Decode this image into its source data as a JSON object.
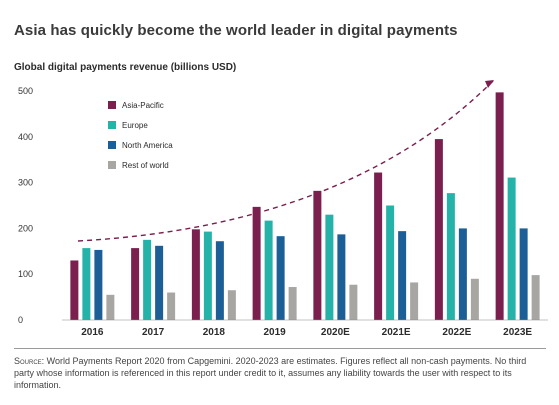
{
  "title": "Asia has quickly become the world leader in digital payments",
  "chart_data": {
    "type": "bar",
    "title": "Global digital payments revenue (billions USD)",
    "categories": [
      "2016",
      "2017",
      "2018",
      "2019",
      "2020E",
      "2021E",
      "2022E",
      "2023E"
    ],
    "series": [
      {
        "name": "Asia-Pacific",
        "color": "#7b1f4f",
        "values": [
          130,
          157,
          198,
          247,
          282,
          322,
          395,
          497
        ]
      },
      {
        "name": "Europe",
        "color": "#25b3a9",
        "values": [
          157,
          175,
          193,
          217,
          230,
          250,
          277,
          311
        ]
      },
      {
        "name": "North America",
        "color": "#1c5f96",
        "values": [
          153,
          162,
          172,
          183,
          187,
          194,
          200,
          200
        ]
      },
      {
        "name": "Rest of world",
        "color": "#a8a6a3",
        "values": [
          55,
          60,
          65,
          72,
          77,
          82,
          90,
          98
        ]
      }
    ],
    "yticks": [
      0,
      100,
      200,
      300,
      400,
      500
    ],
    "ylim": [
      0,
      500
    ],
    "legend": "top-left",
    "grid": false,
    "trend": "dashed curved arrow above bars"
  },
  "source": {
    "label": "Source:",
    "text": " World Payments Report 2020 from Capgemini. 2020-2023 are estimates. Figures reflect all non-cash payments. No third party whose information is referenced in this report under credit to it, assumes any liability towards the user with respect to its information."
  }
}
